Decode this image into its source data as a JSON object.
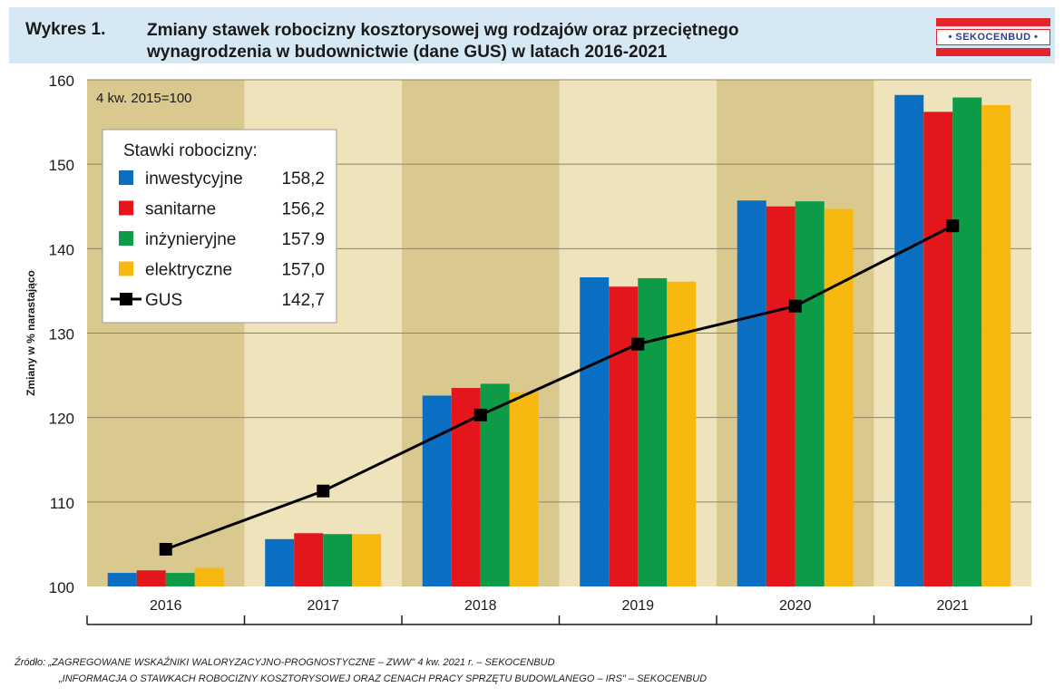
{
  "header": {
    "figure_label": "Wykres 1.",
    "title_line1": "Zmiany stawek robocizny kosztorysowej wg rodzajów oraz przeciętnego",
    "title_line2": "wynagrodzenia w budownictwie (dane GUS) w latach 2016-2021",
    "logo_text": "• SEKOCENBUD •"
  },
  "chart_data": {
    "type": "bar",
    "note": "4 kw. 2015=100",
    "ylabel": "Zmiany w % narastająco",
    "ylim": [
      100,
      160
    ],
    "yticks": [
      100,
      110,
      120,
      130,
      140,
      150,
      160
    ],
    "categories": [
      "2016",
      "2017",
      "2018",
      "2019",
      "2020",
      "2021"
    ],
    "legend_title": "Stawki robocizny:",
    "legend_position": "top-left",
    "series": [
      {
        "name": "inwestycyjne",
        "legend_value": "158,2",
        "color": "#0a6fc2",
        "values": [
          101.6,
          105.6,
          122.6,
          136.6,
          145.7,
          158.2
        ]
      },
      {
        "name": "sanitarne",
        "legend_value": "156,2",
        "color": "#e3161b",
        "values": [
          101.9,
          106.3,
          123.5,
          135.5,
          145.0,
          156.2
        ]
      },
      {
        "name": "inżynieryjne",
        "legend_value": "157.9",
        "color": "#0d9b48",
        "values": [
          101.6,
          106.2,
          124.0,
          136.5,
          145.6,
          157.9
        ]
      },
      {
        "name": "elektryczne",
        "legend_value": "157,0",
        "color": "#f7b90f",
        "values": [
          102.2,
          106.2,
          123.0,
          136.1,
          144.7,
          157.0
        ]
      }
    ],
    "line_series": {
      "name": "GUS",
      "legend_value": "142,7",
      "color": "#000000",
      "values": [
        104.4,
        111.3,
        120.3,
        128.7,
        133.2,
        142.7
      ]
    },
    "band_colors": [
      "#dac98f",
      "#efe3bc"
    ],
    "grid": true
  },
  "source": {
    "line1": "Źródło: „ZAGREGOWANE WSKAŹNIKI WALORYZACYJNO-PROGNOSTYCZNE – ZWW\" 4 kw. 2021 r. – SEKOCENBUD",
    "line2": "„INFORMACJA O STAWKACH ROBOCIZNY KOSZTORYSOWEJ ORAZ CENACH PRACY SPRZĘTU BUDOWLANEGO – IRS\" – SEKOCENBUD"
  }
}
